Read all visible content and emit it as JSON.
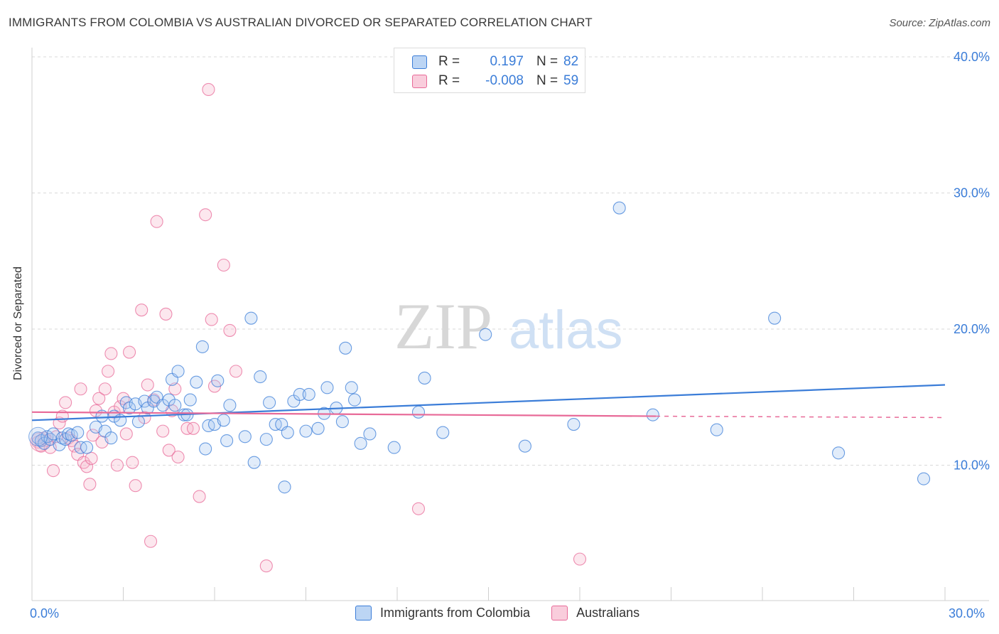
{
  "title": "IMMIGRANTS FROM COLOMBIA VS AUSTRALIAN DIVORCED OR SEPARATED CORRELATION CHART",
  "source": "Source: ZipAtlas.com",
  "watermark": {
    "zip": "ZIP",
    "atlas": "atlas"
  },
  "colors": {
    "blue": "#3b7dd8",
    "pink": "#e86a98",
    "blue_fill": "#a9c8f0",
    "pink_fill": "#f6b9cd",
    "grid": "#d9d9d9"
  },
  "legend": {
    "rows": [
      {
        "r_label": "R =",
        "r_value": "0.197",
        "n_label": "N =",
        "n_value": "82"
      },
      {
        "r_label": "R =",
        "r_value": "-0.008",
        "n_label": "N =",
        "n_value": "59"
      }
    ]
  },
  "bottom_legend": [
    "Immigrants from Colombia",
    "Australians"
  ],
  "chart_data": {
    "type": "scatter",
    "title": "IMMIGRANTS FROM COLOMBIA VS AUSTRALIAN DIVORCED OR SEPARATED CORRELATION CHART",
    "xlabel": "",
    "ylabel": "Divorced or Separated",
    "xlim": [
      0,
      30
    ],
    "ylim": [
      0,
      42
    ],
    "x_tick_labels": [
      "0.0%",
      "30.0%"
    ],
    "y_ticks": [
      10,
      20,
      30,
      40
    ],
    "y_tick_labels": [
      "10.0%",
      "20.0%",
      "30.0%",
      "40.0%"
    ],
    "grid": true,
    "legend_position": "top-center",
    "series": [
      {
        "name": "Immigrants from Colombia",
        "color": "#3b7dd8",
        "r": 0.197,
        "n": 82,
        "trend": {
          "x": [
            0,
            30
          ],
          "y": [
            13.3,
            15.9
          ]
        },
        "points": [
          [
            0.2,
            12.0
          ],
          [
            0.3,
            11.8
          ],
          [
            0.4,
            11.6
          ],
          [
            0.5,
            12.1
          ],
          [
            0.6,
            11.9
          ],
          [
            0.7,
            12.3
          ],
          [
            0.9,
            11.5
          ],
          [
            1.0,
            12.0
          ],
          [
            1.1,
            11.9
          ],
          [
            1.2,
            12.3
          ],
          [
            1.3,
            12.2
          ],
          [
            1.5,
            12.4
          ],
          [
            1.6,
            11.3
          ],
          [
            1.8,
            11.3
          ],
          [
            2.1,
            12.8
          ],
          [
            2.3,
            13.6
          ],
          [
            2.4,
            12.5
          ],
          [
            2.6,
            12.0
          ],
          [
            2.7,
            13.6
          ],
          [
            2.9,
            13.3
          ],
          [
            3.1,
            14.6
          ],
          [
            3.2,
            14.2
          ],
          [
            3.4,
            14.5
          ],
          [
            3.5,
            13.2
          ],
          [
            3.7,
            14.7
          ],
          [
            3.8,
            14.2
          ],
          [
            4.0,
            14.7
          ],
          [
            4.1,
            15.0
          ],
          [
            4.3,
            14.4
          ],
          [
            4.5,
            14.8
          ],
          [
            4.6,
            16.3
          ],
          [
            4.7,
            14.4
          ],
          [
            4.8,
            16.9
          ],
          [
            5.0,
            13.7
          ],
          [
            5.1,
            13.7
          ],
          [
            5.2,
            14.8
          ],
          [
            5.4,
            16.1
          ],
          [
            5.6,
            18.7
          ],
          [
            5.7,
            11.2
          ],
          [
            5.8,
            12.9
          ],
          [
            6.0,
            13.0
          ],
          [
            6.1,
            16.2
          ],
          [
            6.3,
            13.3
          ],
          [
            6.4,
            11.8
          ],
          [
            6.5,
            14.4
          ],
          [
            7.0,
            12.1
          ],
          [
            7.2,
            20.8
          ],
          [
            7.3,
            10.2
          ],
          [
            7.5,
            16.5
          ],
          [
            7.7,
            11.9
          ],
          [
            7.8,
            14.6
          ],
          [
            8.0,
            13.0
          ],
          [
            8.2,
            13.0
          ],
          [
            8.3,
            8.4
          ],
          [
            8.4,
            12.4
          ],
          [
            8.6,
            14.7
          ],
          [
            8.8,
            15.2
          ],
          [
            9.0,
            12.5
          ],
          [
            9.1,
            15.2
          ],
          [
            9.4,
            12.7
          ],
          [
            9.6,
            13.8
          ],
          [
            9.7,
            15.7
          ],
          [
            10.0,
            14.2
          ],
          [
            10.2,
            13.2
          ],
          [
            10.3,
            18.6
          ],
          [
            10.5,
            15.7
          ],
          [
            10.6,
            14.8
          ],
          [
            10.8,
            11.6
          ],
          [
            11.1,
            12.3
          ],
          [
            11.9,
            11.3
          ],
          [
            12.7,
            13.9
          ],
          [
            12.9,
            16.4
          ],
          [
            13.5,
            12.4
          ],
          [
            14.9,
            19.6
          ],
          [
            16.2,
            11.4
          ],
          [
            17.8,
            13.0
          ],
          [
            19.3,
            28.9
          ],
          [
            20.4,
            13.7
          ],
          [
            22.5,
            12.6
          ],
          [
            24.4,
            20.8
          ],
          [
            26.5,
            10.9
          ],
          [
            29.3,
            9.0
          ]
        ]
      },
      {
        "name": "Australians",
        "color": "#e86a98",
        "r": -0.008,
        "n": 59,
        "trend": {
          "x": [
            0,
            20.5
          ],
          "y": [
            13.9,
            13.6
          ]
        },
        "trend_dashed": {
          "x": [
            20.5,
            30
          ],
          "y": [
            13.6,
            13.5
          ]
        },
        "points": [
          [
            0.2,
            11.7
          ],
          [
            0.3,
            11.4
          ],
          [
            0.4,
            12.0
          ],
          [
            0.5,
            11.8
          ],
          [
            0.6,
            11.3
          ],
          [
            0.7,
            9.6
          ],
          [
            0.8,
            12.1
          ],
          [
            0.9,
            13.1
          ],
          [
            1.0,
            13.6
          ],
          [
            1.1,
            14.6
          ],
          [
            1.2,
            12.0
          ],
          [
            1.3,
            11.8
          ],
          [
            1.4,
            11.4
          ],
          [
            1.5,
            10.8
          ],
          [
            1.6,
            15.6
          ],
          [
            1.7,
            10.2
          ],
          [
            1.8,
            9.9
          ],
          [
            1.9,
            8.6
          ],
          [
            1.95,
            10.5
          ],
          [
            2.0,
            12.2
          ],
          [
            2.1,
            14.0
          ],
          [
            2.2,
            14.9
          ],
          [
            2.3,
            11.7
          ],
          [
            2.4,
            15.6
          ],
          [
            2.5,
            16.9
          ],
          [
            2.6,
            18.2
          ],
          [
            2.7,
            13.9
          ],
          [
            2.8,
            10.0
          ],
          [
            2.9,
            14.3
          ],
          [
            3.0,
            14.9
          ],
          [
            3.1,
            12.3
          ],
          [
            3.2,
            18.3
          ],
          [
            3.3,
            10.2
          ],
          [
            3.4,
            8.5
          ],
          [
            3.6,
            21.4
          ],
          [
            3.7,
            13.5
          ],
          [
            3.8,
            15.9
          ],
          [
            3.9,
            4.4
          ],
          [
            4.0,
            14.8
          ],
          [
            4.1,
            27.9
          ],
          [
            4.3,
            12.5
          ],
          [
            4.4,
            21.1
          ],
          [
            4.5,
            11.1
          ],
          [
            4.6,
            14.0
          ],
          [
            4.7,
            15.6
          ],
          [
            4.8,
            10.6
          ],
          [
            5.1,
            12.7
          ],
          [
            5.3,
            12.7
          ],
          [
            5.5,
            7.7
          ],
          [
            5.7,
            28.4
          ],
          [
            5.8,
            37.6
          ],
          [
            5.9,
            20.7
          ],
          [
            6.0,
            15.8
          ],
          [
            6.3,
            24.7
          ],
          [
            6.5,
            19.9
          ],
          [
            6.7,
            16.9
          ],
          [
            7.7,
            2.6
          ],
          [
            12.7,
            6.8
          ],
          [
            18.0,
            3.1
          ]
        ]
      }
    ]
  }
}
